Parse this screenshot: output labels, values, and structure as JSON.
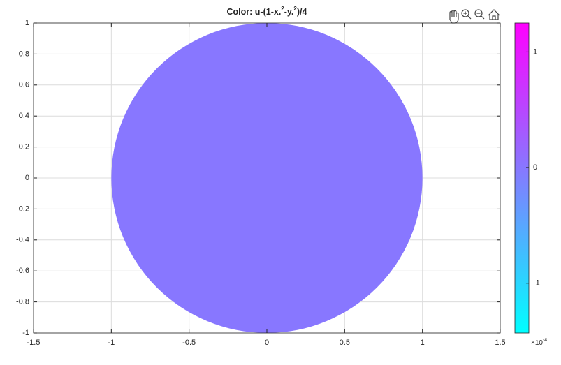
{
  "chart_data": {
    "type": "surface",
    "title_parts": [
      "Color:  u-(1-x.",
      "2",
      "-y.",
      "2",
      ")/4"
    ],
    "xlim": [
      -1.5,
      1.5
    ],
    "xticks": [
      -1.5,
      -1,
      -0.5,
      0,
      0.5,
      1,
      1.5
    ],
    "ylim": [
      -1,
      1
    ],
    "yticks": [
      -1,
      -0.8,
      -0.6,
      -0.4,
      -0.2,
      0,
      0.2,
      0.4,
      0.6,
      0.8,
      1
    ],
    "grid": true,
    "disk": {
      "center": [
        0,
        0
      ],
      "radius": 1,
      "value": 0
    },
    "colormap": [
      "#00ffff",
      "#ff00ff"
    ],
    "clim": [
      -1.43,
      1.25
    ],
    "cticks": [
      -1,
      0,
      1
    ],
    "colorbar_exponent_parts": [
      "×10",
      "-4"
    ]
  }
}
